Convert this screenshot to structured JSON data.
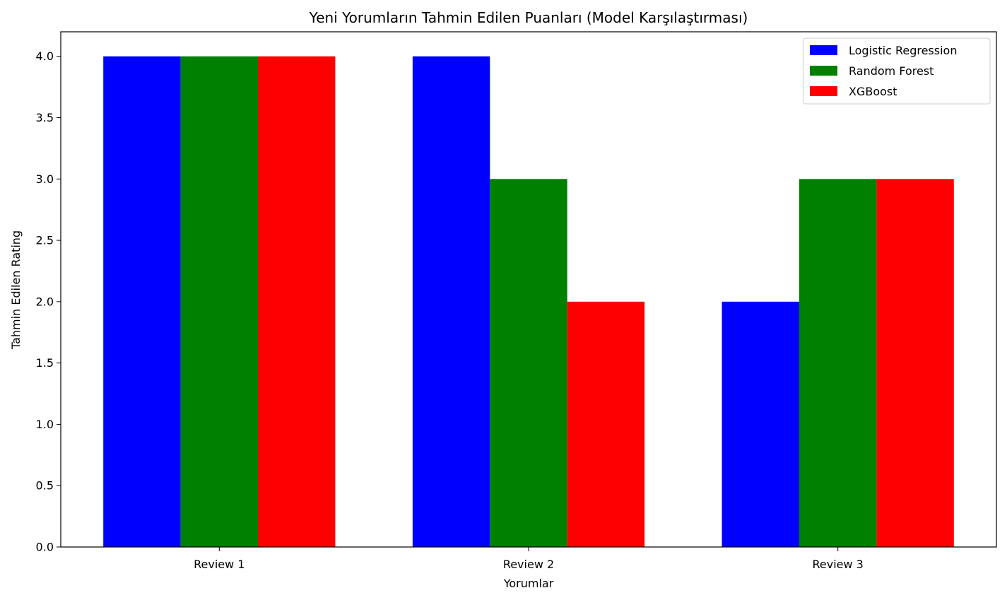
{
  "chart_data": {
    "type": "bar",
    "title": "Yeni Yorumların Tahmin Edilen Puanları (Model Karşılaştırması)",
    "xlabel": "Yorumlar",
    "ylabel": "Tahmin Edilen Rating",
    "categories": [
      "Review 1",
      "Review 2",
      "Review 3"
    ],
    "series": [
      {
        "name": "Logistic Regression",
        "color": "#0000ff",
        "values": [
          4,
          4,
          2
        ]
      },
      {
        "name": "Random Forest",
        "color": "#008000",
        "values": [
          4,
          3,
          3
        ]
      },
      {
        "name": "XGBoost",
        "color": "#ff0000",
        "values": [
          4,
          2,
          3
        ]
      }
    ],
    "ylim": [
      0,
      4.2
    ],
    "yticks": [
      "0.0",
      "0.5",
      "1.0",
      "1.5",
      "2.0",
      "2.5",
      "3.0",
      "3.5",
      "4.0"
    ],
    "grid": false,
    "legend_position": "top-right"
  }
}
